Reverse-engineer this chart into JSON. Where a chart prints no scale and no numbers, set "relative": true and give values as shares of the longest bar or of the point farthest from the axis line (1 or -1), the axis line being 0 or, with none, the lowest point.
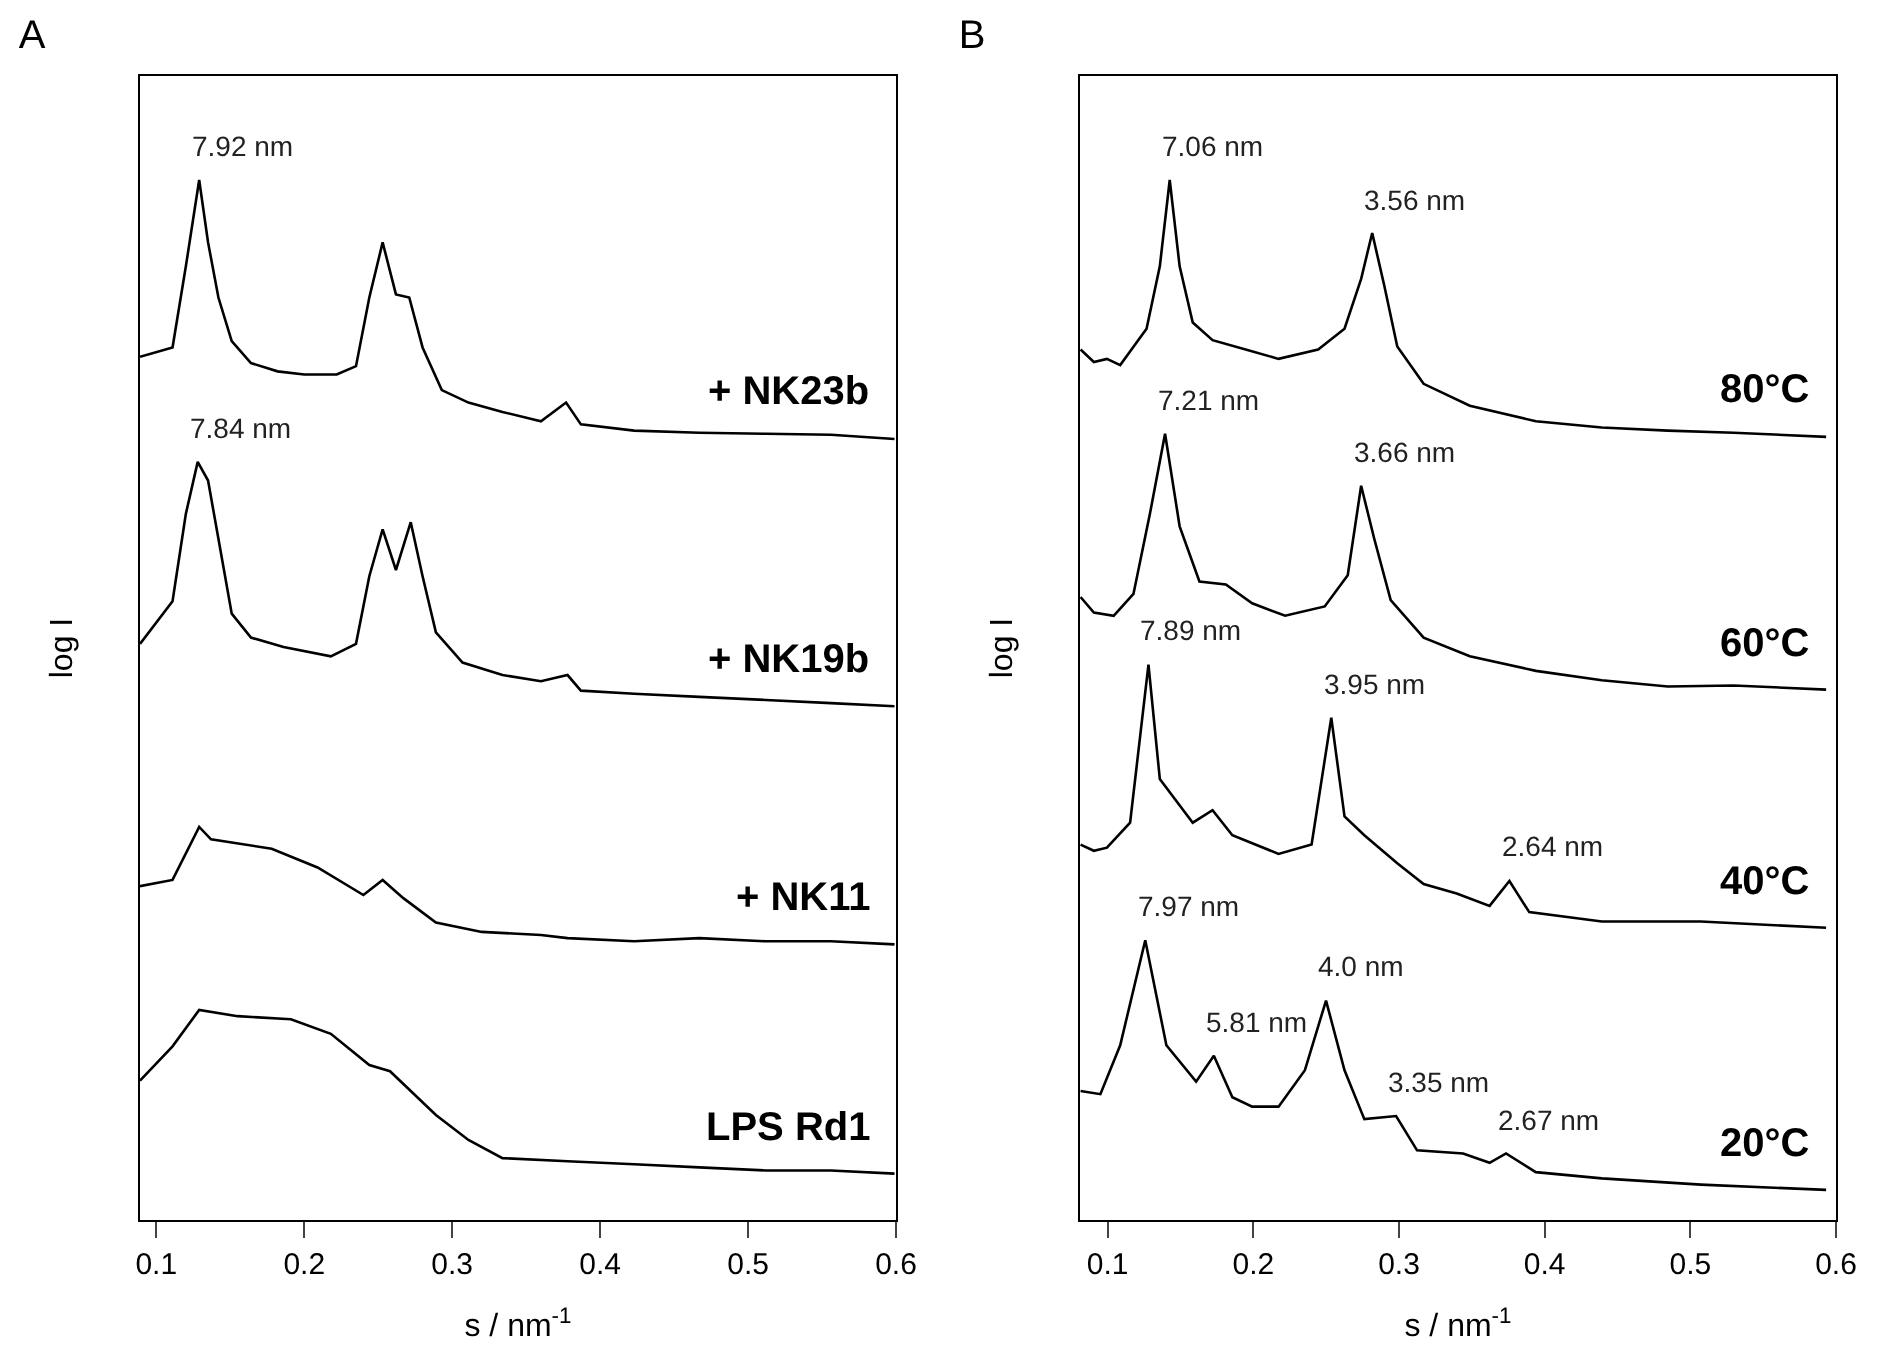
{
  "chart_data": [
    {
      "type": "line",
      "title": "A",
      "xlabel": "s / nm$^{-1}$",
      "ylabel": "log I",
      "relative": true,
      "xlim": [
        0.089,
        0.6
      ],
      "xticks": [
        0.1,
        0.2,
        0.3,
        0.4,
        0.5,
        0.6
      ],
      "legend": false,
      "marker": "none",
      "line_style": "solid",
      "grid": false,
      "series": [
        {
          "name": "+ NK23b",
          "color": "#000000",
          "x": [
            0.089,
            0.111,
            0.12,
            0.129,
            0.135,
            0.142,
            0.151,
            0.164,
            0.182,
            0.2,
            0.222,
            0.235,
            0.244,
            0.253,
            0.262,
            0.271,
            0.28,
            0.293,
            0.311,
            0.334,
            0.36,
            0.377,
            0.387,
            0.423,
            0.467,
            0.512,
            0.556,
            0.599
          ],
          "values": [
            0.83,
            0.839,
            0.917,
            1.0,
            0.94,
            0.887,
            0.845,
            0.824,
            0.816,
            0.813,
            0.813,
            0.821,
            0.887,
            0.94,
            0.89,
            0.887,
            0.839,
            0.798,
            0.786,
            0.777,
            0.768,
            0.786,
            0.765,
            0.759,
            0.757,
            0.756,
            0.755,
            0.751
          ]
        },
        {
          "name": "+ NK19b",
          "color": "#000000",
          "x": [
            0.089,
            0.111,
            0.12,
            0.128,
            0.135,
            0.142,
            0.151,
            0.164,
            0.186,
            0.218,
            0.235,
            0.244,
            0.253,
            0.262,
            0.272,
            0.28,
            0.289,
            0.307,
            0.334,
            0.36,
            0.378,
            0.387,
            0.423,
            0.467,
            0.512,
            0.556,
            0.599
          ],
          "values": [
            0.554,
            0.595,
            0.679,
            0.729,
            0.711,
            0.655,
            0.583,
            0.56,
            0.551,
            0.542,
            0.554,
            0.619,
            0.664,
            0.625,
            0.671,
            0.619,
            0.565,
            0.536,
            0.524,
            0.518,
            0.524,
            0.509,
            0.506,
            0.503,
            0.5,
            0.497,
            0.494
          ]
        },
        {
          "name": "+ NK11",
          "color": "#000000",
          "x": [
            0.089,
            0.111,
            0.129,
            0.137,
            0.178,
            0.209,
            0.24,
            0.253,
            0.267,
            0.289,
            0.32,
            0.36,
            0.378,
            0.423,
            0.467,
            0.512,
            0.556,
            0.599
          ],
          "values": [
            0.321,
            0.327,
            0.378,
            0.366,
            0.357,
            0.339,
            0.3125,
            0.327,
            0.3095,
            0.286,
            0.277,
            0.274,
            0.271,
            0.268,
            0.271,
            0.268,
            0.268,
            0.265
          ]
        },
        {
          "name": "LPS Rd1",
          "color": "#000000",
          "x": [
            0.089,
            0.111,
            0.129,
            0.155,
            0.191,
            0.218,
            0.244,
            0.258,
            0.289,
            0.311,
            0.334,
            0.378,
            0.423,
            0.467,
            0.512,
            0.556,
            0.599
          ],
          "values": [
            0.134,
            0.167,
            0.202,
            0.196,
            0.193,
            0.179,
            0.149,
            0.143,
            0.101,
            0.077,
            0.0595,
            0.0565,
            0.0536,
            0.0506,
            0.0476,
            0.0476,
            0.0446
          ]
        }
      ],
      "annotations": [
        {
          "text": "7.92 nm",
          "x": 0.129,
          "y": 1.0
        },
        {
          "text": "7.84 nm",
          "x": 0.128,
          "y": 0.729
        }
      ]
    },
    {
      "type": "line",
      "title": "B",
      "xlabel": "s / nm$^{-1}$",
      "ylabel": "log I",
      "relative": true,
      "xlim": [
        0.081,
        0.6
      ],
      "xticks": [
        0.1,
        0.2,
        0.3,
        0.4,
        0.5,
        0.6
      ],
      "legend": false,
      "marker": "none",
      "line_style": "solid",
      "grid": false,
      "series": [
        {
          "name": "80°C",
          "color": "#000000",
          "x": [
            0.0814,
            0.0905,
            0.0995,
            0.1086,
            0.1267,
            0.1358,
            0.1426,
            0.1494,
            0.1584,
            0.172,
            0.1947,
            0.2173,
            0.2445,
            0.2626,
            0.274,
            0.2816,
            0.2898,
            0.2988,
            0.3169,
            0.3486,
            0.394,
            0.4392,
            0.4845,
            0.5298,
            0.5932
          ],
          "values": [
            0.837,
            0.825,
            0.828,
            0.822,
            0.857,
            0.917,
            1.0,
            0.917,
            0.863,
            0.846,
            0.837,
            0.828,
            0.837,
            0.857,
            0.905,
            0.949,
            0.899,
            0.84,
            0.804,
            0.783,
            0.768,
            0.762,
            0.759,
            0.757,
            0.753
          ]
        },
        {
          "name": "60°C",
          "color": "#000000",
          "x": [
            0.0814,
            0.0905,
            0.1041,
            0.1177,
            0.129,
            0.1394,
            0.1494,
            0.163,
            0.1811,
            0.1992,
            0.2218,
            0.249,
            0.2648,
            0.274,
            0.283,
            0.2943,
            0.3169,
            0.3486,
            0.394,
            0.4392,
            0.4845,
            0.5298,
            0.5932
          ],
          "values": [
            0.599,
            0.584,
            0.581,
            0.602,
            0.679,
            0.756,
            0.667,
            0.614,
            0.611,
            0.593,
            0.581,
            0.59,
            0.62,
            0.706,
            0.655,
            0.596,
            0.56,
            0.542,
            0.528,
            0.519,
            0.513,
            0.514,
            0.51
          ]
        },
        {
          "name": "40°C",
          "color": "#000000",
          "x": [
            0.0814,
            0.0905,
            0.0995,
            0.1154,
            0.128,
            0.1358,
            0.1584,
            0.172,
            0.1856,
            0.2173,
            0.24,
            0.2535,
            0.2626,
            0.2762,
            0.2988,
            0.3169,
            0.3396,
            0.3622,
            0.3758,
            0.3894,
            0.4392,
            0.5072,
            0.5932
          ],
          "values": [
            0.361,
            0.355,
            0.358,
            0.382,
            0.534,
            0.424,
            0.382,
            0.394,
            0.37,
            0.352,
            0.361,
            0.483,
            0.388,
            0.37,
            0.343,
            0.323,
            0.314,
            0.302,
            0.326,
            0.296,
            0.287,
            0.287,
            0.281
          ]
        },
        {
          "name": "20°C",
          "color": "#000000",
          "x": [
            0.0814,
            0.095,
            0.1086,
            0.1258,
            0.1403,
            0.1607,
            0.1729,
            0.1856,
            0.1992,
            0.2173,
            0.2354,
            0.2499,
            0.2626,
            0.2762,
            0.298,
            0.3124,
            0.344,
            0.3622,
            0.3735,
            0.3939,
            0.4392,
            0.5072,
            0.5932
          ],
          "values": [
            0.124,
            0.121,
            0.168,
            0.269,
            0.168,
            0.133,
            0.158,
            0.118,
            0.109,
            0.109,
            0.144,
            0.211,
            0.144,
            0.097,
            0.1,
            0.067,
            0.064,
            0.055,
            0.064,
            0.046,
            0.04,
            0.034,
            0.029
          ]
        }
      ],
      "annotations": [
        {
          "text": "7.06 nm",
          "x": 0.1426,
          "y": 1.0
        },
        {
          "text": "3.56 nm",
          "x": 0.2816,
          "y": 0.949
        },
        {
          "text": "7.21 nm",
          "x": 0.1394,
          "y": 0.756
        },
        {
          "text": "3.66 nm",
          "x": 0.274,
          "y": 0.706
        },
        {
          "text": "7.89 nm",
          "x": 0.128,
          "y": 0.534
        },
        {
          "text": "3.95 nm",
          "x": 0.2535,
          "y": 0.483
        },
        {
          "text": "2.64 nm",
          "x": 0.3758,
          "y": 0.326
        },
        {
          "text": "7.97 nm",
          "x": 0.1258,
          "y": 0.269
        },
        {
          "text": "5.81 nm",
          "x": 0.1729,
          "y": 0.158
        },
        {
          "text": "4.0 nm",
          "x": 0.2499,
          "y": 0.211
        },
        {
          "text": "3.35 nm",
          "x": 0.298,
          "y": 0.1
        },
        {
          "text": "2.67 nm",
          "x": 0.3735,
          "y": 0.064
        }
      ]
    }
  ]
}
